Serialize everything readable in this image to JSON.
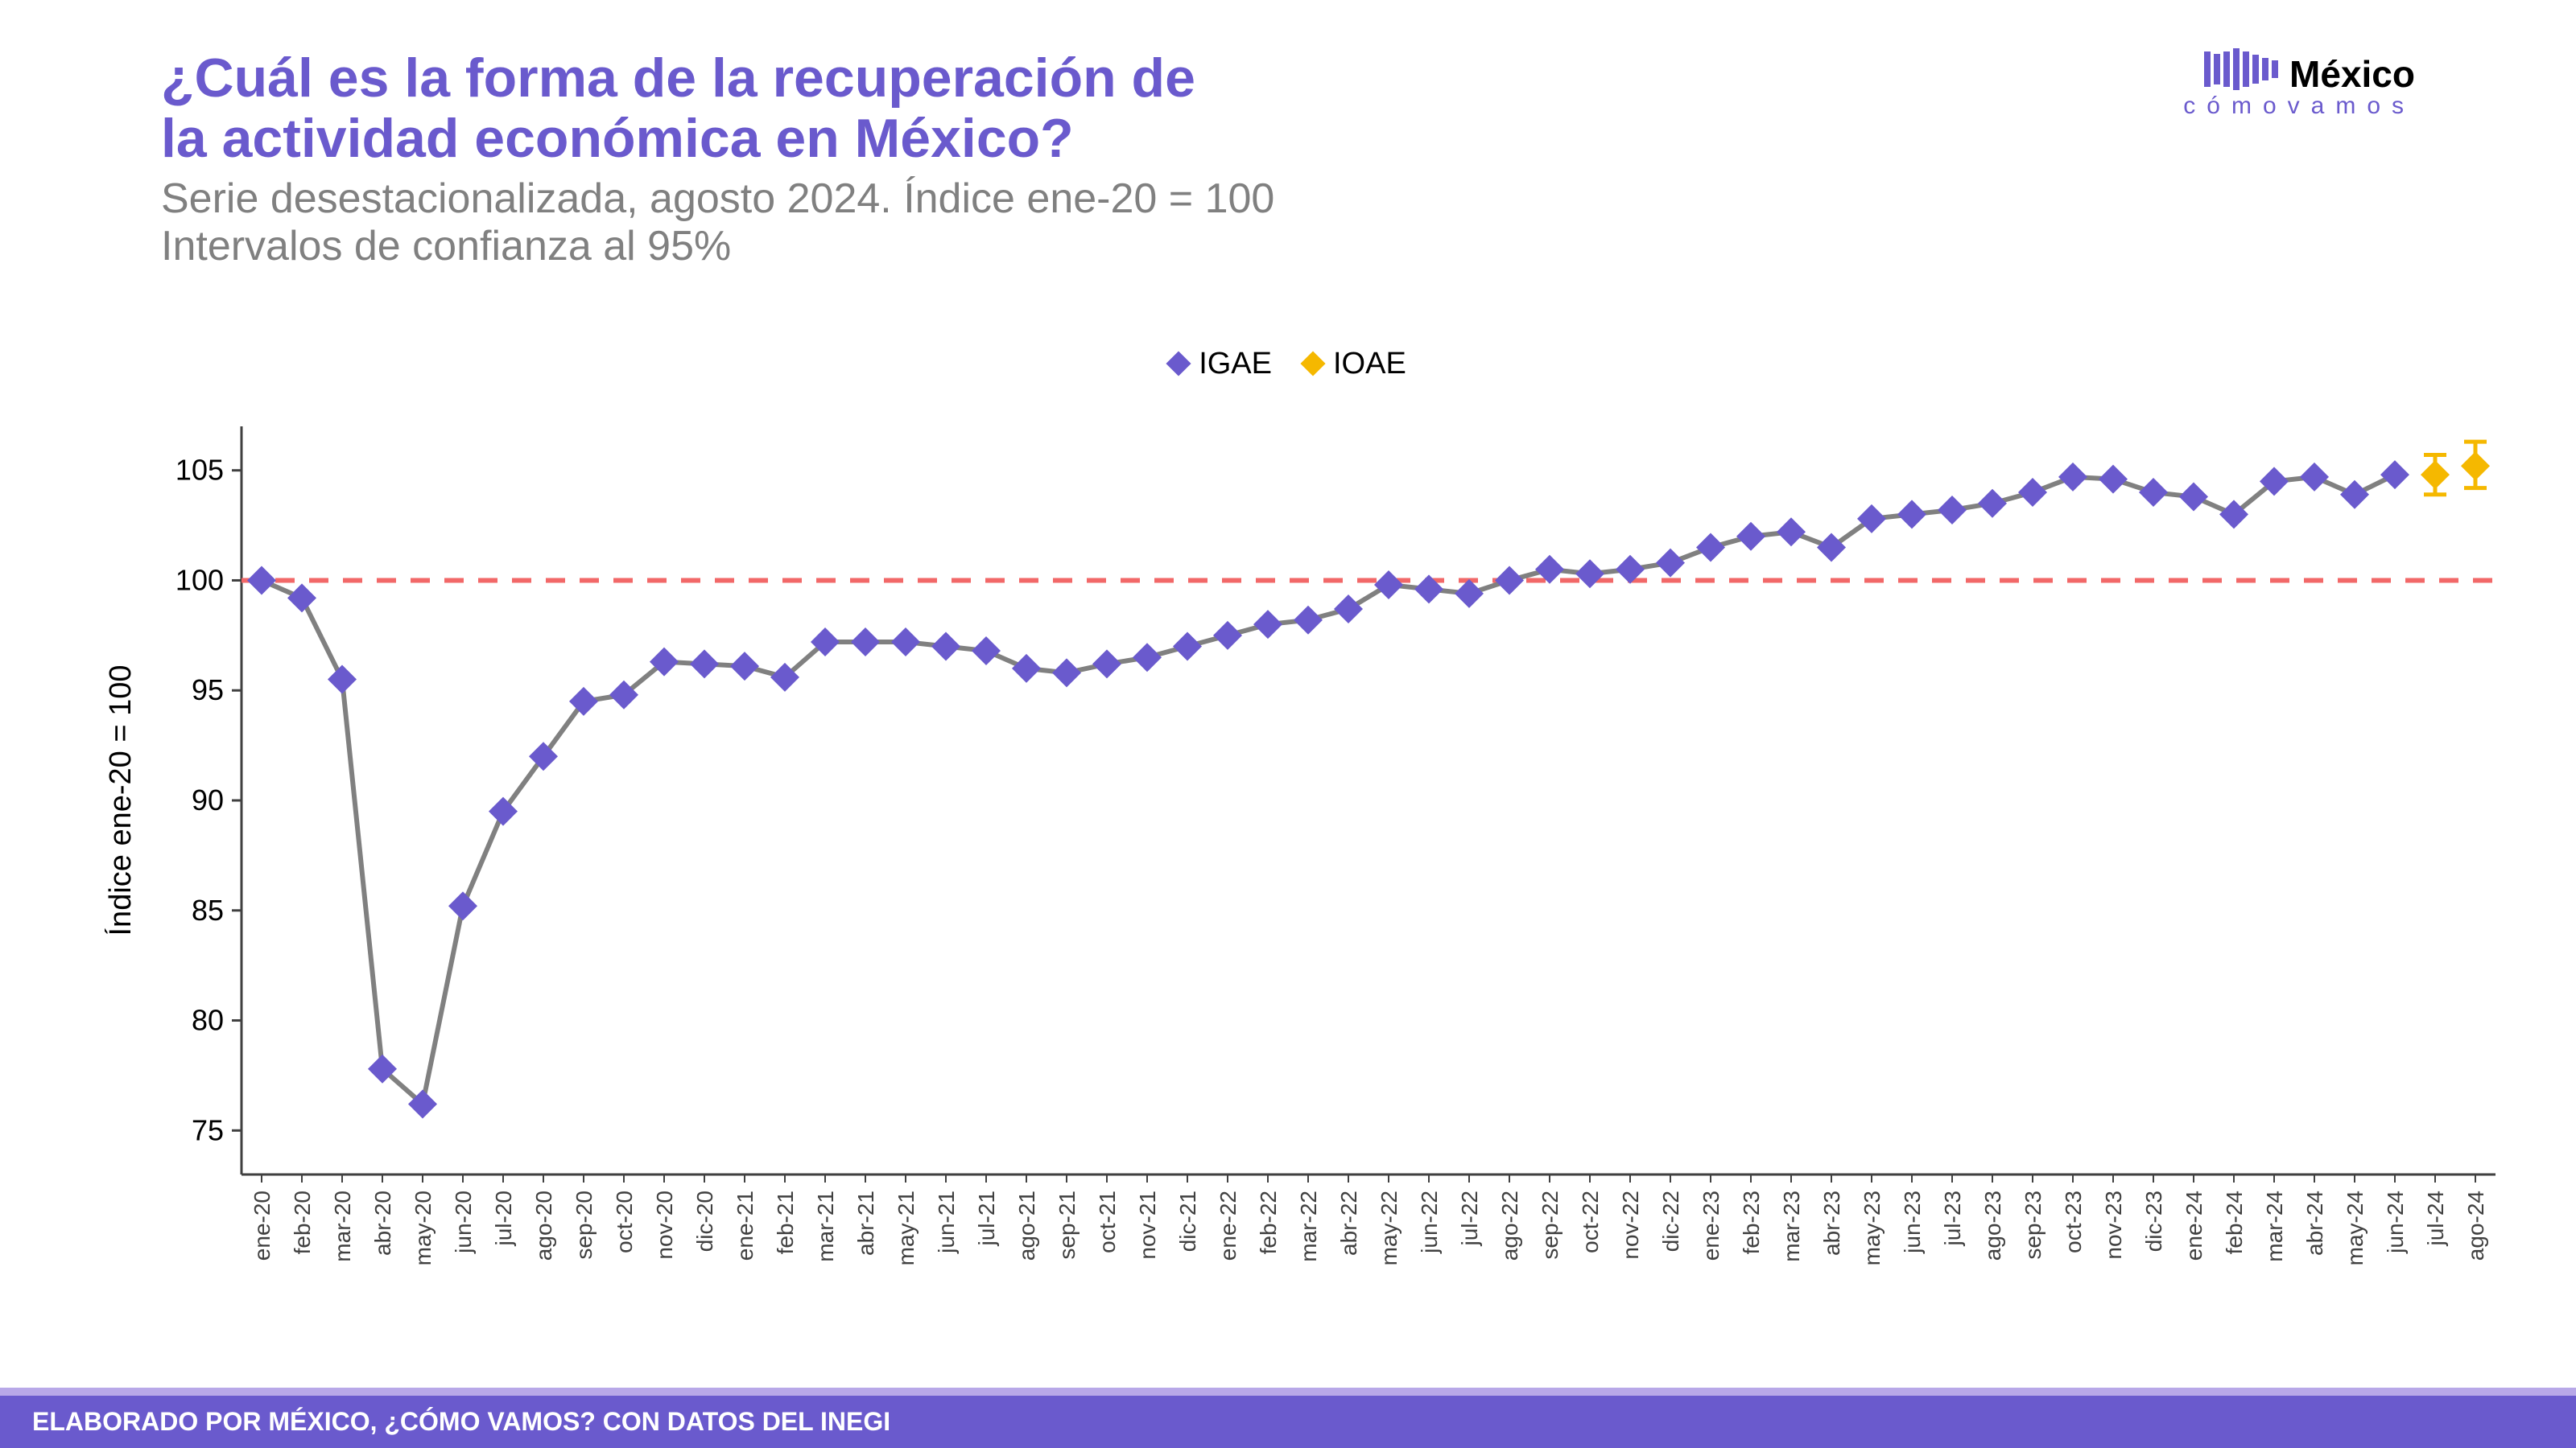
{
  "title_line1": "¿Cuál es la forma de la recuperación de",
  "title_line2": "la actividad económica en México?",
  "subtitle_line1": "Serie desestacionalizada, agosto 2024. Índice ene-20 = 100",
  "subtitle_line2": "Intervalos de confianza al 95%",
  "title_color": "#6a5acd",
  "subtitle_color": "#808080",
  "title_fontsize": 68,
  "subtitle_fontsize": 52,
  "logo": {
    "main": "México",
    "sub": "cómovamos",
    "main_fontsize": 46,
    "sub_fontsize": 30,
    "bar_color": "#6a5acd"
  },
  "legend": {
    "fontsize": 38,
    "items": [
      {
        "label": "IGAE",
        "color": "#6a5acd"
      },
      {
        "label": "IOAE",
        "color": "#f5b800"
      }
    ]
  },
  "chart": {
    "ylabel": "Índice ene-20 = 100",
    "ylabel_fontsize": 38,
    "ylabel_color": "#000000",
    "ylim": [
      73,
      107
    ],
    "yticks": [
      75,
      80,
      85,
      90,
      95,
      100,
      105
    ],
    "ytick_fontsize": 36,
    "xtick_fontsize": 28,
    "xtick_color": "#404040",
    "background": "#ffffff",
    "axis_color": "#404040",
    "axis_width": 3,
    "reference_line": {
      "value": 100,
      "color": "#f26868",
      "dash": "24 18",
      "width": 6
    },
    "line_color": "#808080",
    "line_width": 6,
    "marker_size": 18,
    "igae_color": "#6a5acd",
    "ioae_color": "#f5b800",
    "error_cap_width": 14,
    "categories": [
      "ene-20",
      "feb-20",
      "mar-20",
      "abr-20",
      "may-20",
      "jun-20",
      "jul-20",
      "ago-20",
      "sep-20",
      "oct-20",
      "nov-20",
      "dic-20",
      "ene-21",
      "feb-21",
      "mar-21",
      "abr-21",
      "may-21",
      "jun-21",
      "jul-21",
      "ago-21",
      "sep-21",
      "oct-21",
      "nov-21",
      "dic-21",
      "ene-22",
      "feb-22",
      "mar-22",
      "abr-22",
      "may-22",
      "jun-22",
      "jul-22",
      "ago-22",
      "sep-22",
      "oct-22",
      "nov-22",
      "dic-22",
      "ene-23",
      "feb-23",
      "mar-23",
      "abr-23",
      "may-23",
      "jun-23",
      "jul-23",
      "ago-23",
      "sep-23",
      "oct-23",
      "nov-23",
      "dic-23",
      "ene-24",
      "feb-24",
      "mar-24",
      "abr-24",
      "may-24",
      "jun-24",
      "jul-24",
      "ago-24"
    ],
    "igae_values": [
      100.0,
      99.2,
      95.5,
      77.8,
      76.2,
      85.2,
      89.5,
      92.0,
      94.5,
      94.8,
      96.3,
      96.2,
      96.1,
      95.6,
      97.2,
      97.2,
      97.2,
      97.0,
      96.8,
      96.0,
      95.8,
      96.2,
      96.5,
      97.0,
      97.5,
      98.0,
      98.2,
      98.7,
      99.8,
      99.6,
      99.4,
      100.0,
      100.5,
      100.3,
      100.5,
      100.8,
      101.5,
      102.0,
      102.2,
      101.5,
      102.8,
      103.0,
      103.2,
      103.5,
      104.0,
      104.7,
      104.6,
      104.0,
      103.8,
      103.0,
      104.5,
      104.7,
      103.9,
      104.8
    ],
    "ioae_values": [
      {
        "index": 54,
        "value": 104.8,
        "err_low": 103.9,
        "err_high": 105.7
      },
      {
        "index": 55,
        "value": 105.2,
        "err_low": 104.2,
        "err_high": 106.3
      }
    ]
  },
  "footer": {
    "text": "ELABORADO POR MÉXICO, ¿CÓMO VAMOS? CON DATOS DEL INEGI",
    "fontsize": 32,
    "bg": "#6a5acd",
    "stripe": "#b8a8e8"
  }
}
